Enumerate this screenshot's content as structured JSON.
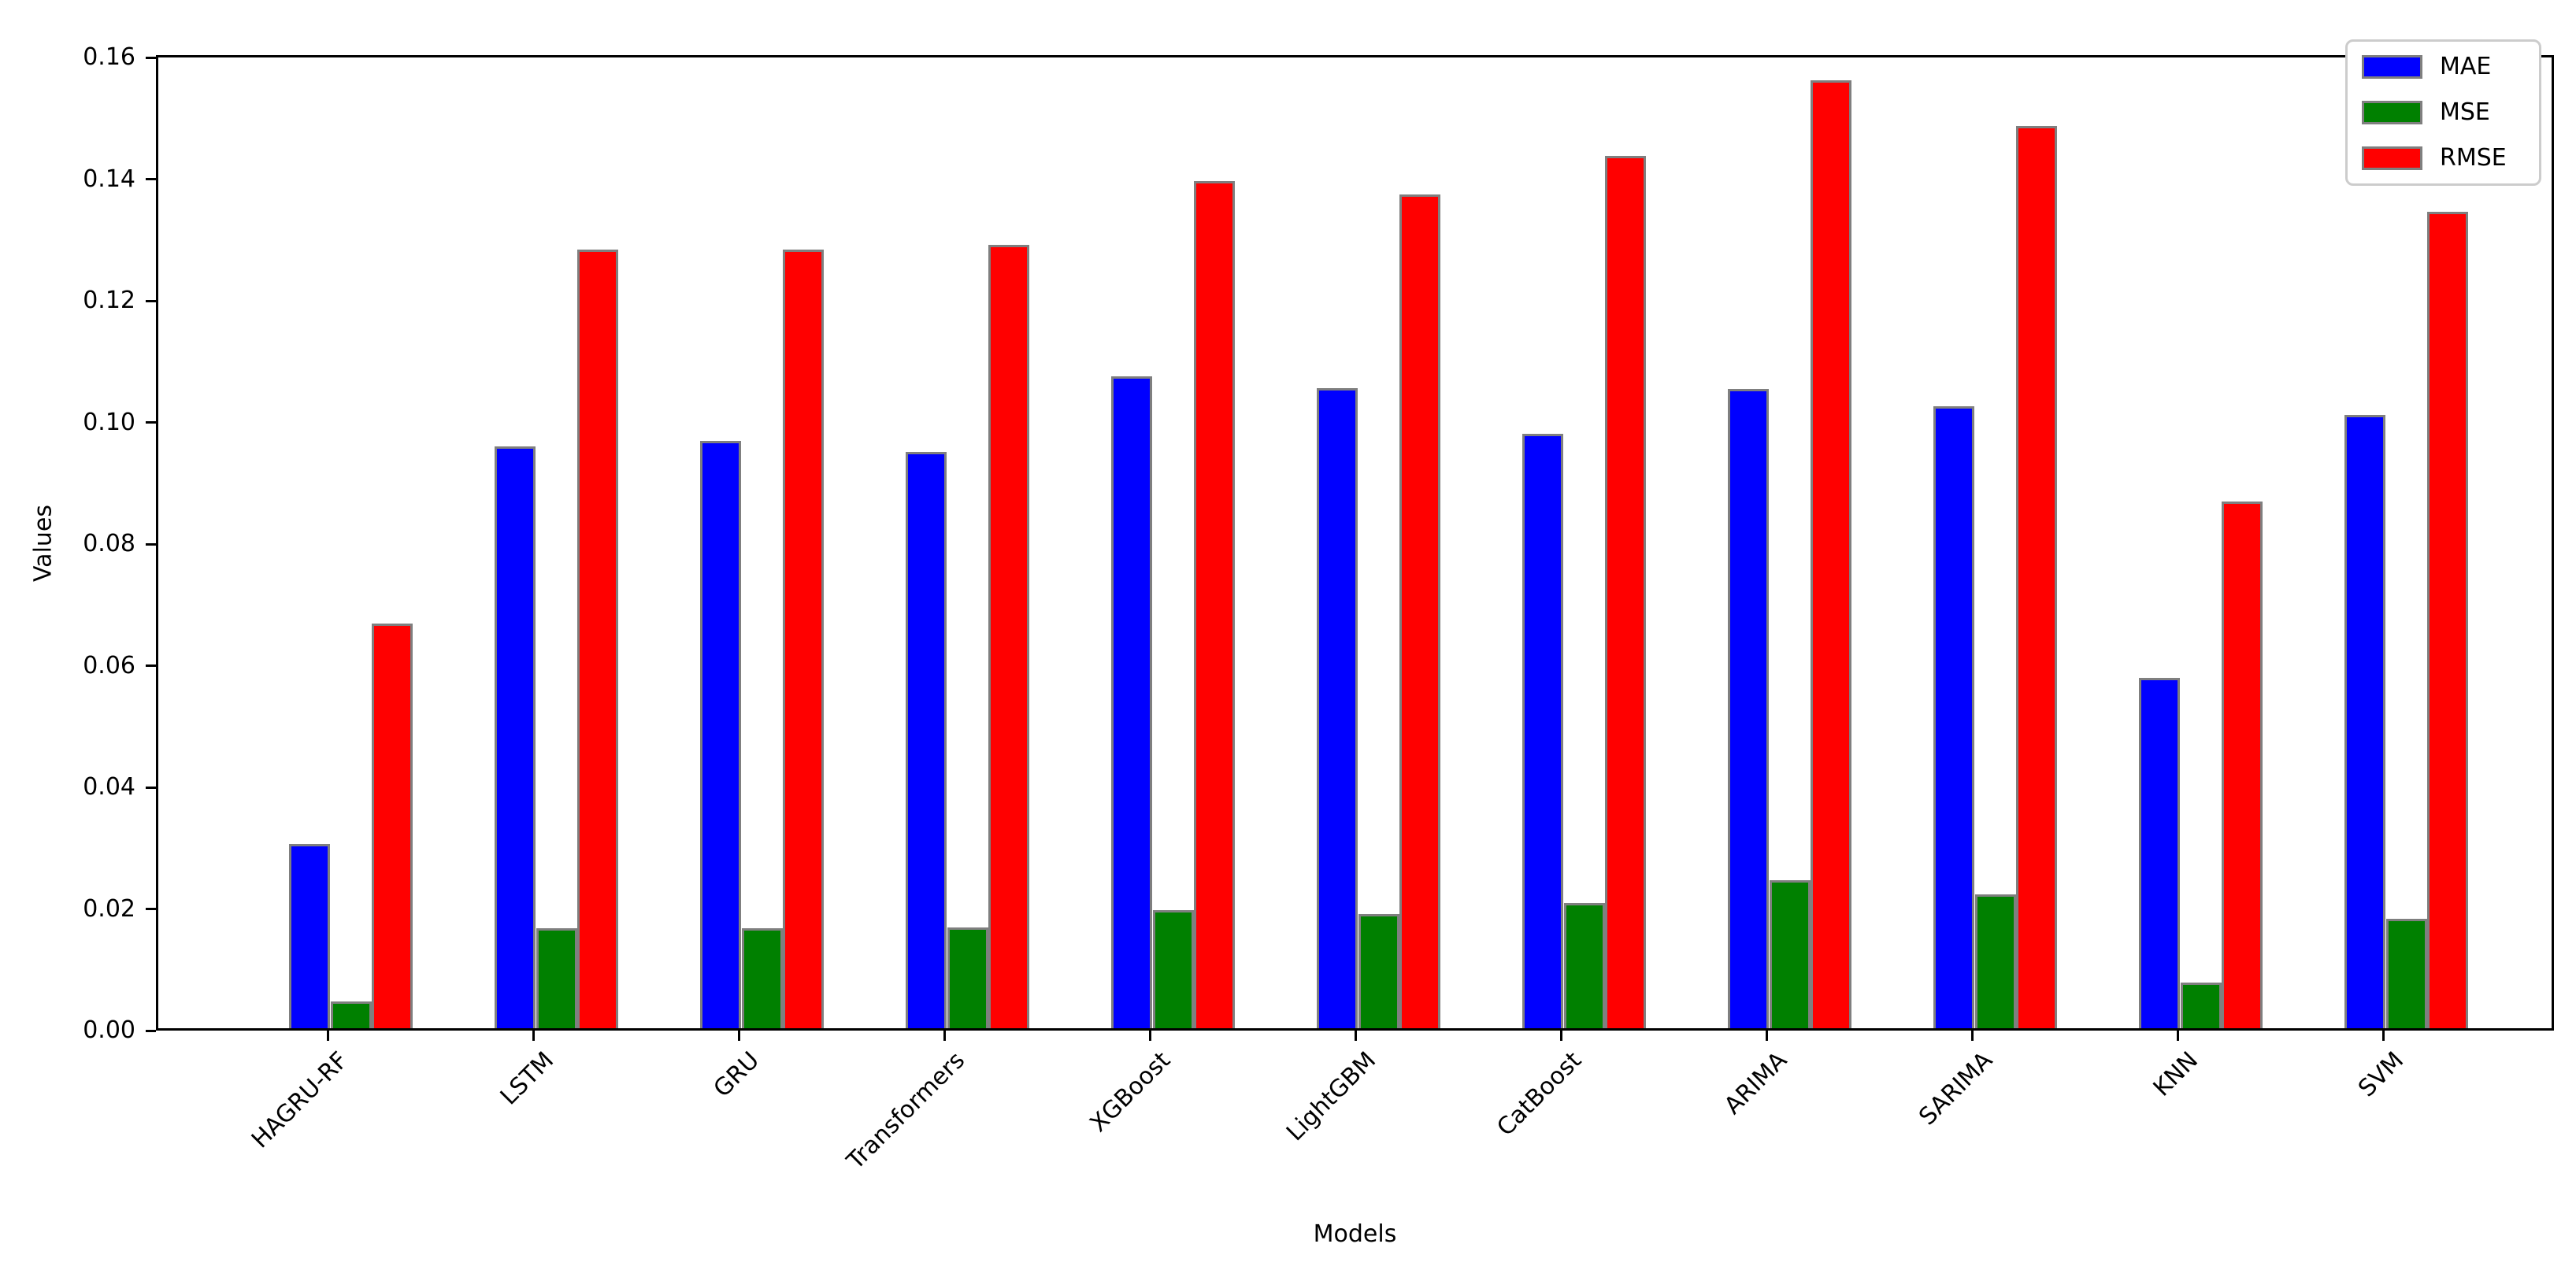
{
  "figure": {
    "xlabel": "Models",
    "ylabel": "Values"
  },
  "legend": {
    "position": "upper right",
    "items": [
      {
        "label": "MAE",
        "color": "#0000ff"
      },
      {
        "label": "MSE",
        "color": "#008000"
      },
      {
        "label": "RMSE",
        "color": "#ff0000"
      }
    ]
  },
  "chart_data": {
    "type": "bar",
    "title": "",
    "xlabel": "Models",
    "ylabel": "Values",
    "categories": [
      "HAGRU-RF",
      "LSTM",
      "GRU",
      "Transformers",
      "XGBoost",
      "LightGBM",
      "CatBoost",
      "ARIMA",
      "SARIMA",
      "KNN",
      "SVM"
    ],
    "series": [
      {
        "name": "MAE",
        "color": "#0000ff",
        "values": [
          0.0303,
          0.0957,
          0.0966,
          0.0948,
          0.1072,
          0.1053,
          0.0977,
          0.1051,
          0.1023,
          0.0576,
          0.1008
        ]
      },
      {
        "name": "MSE",
        "color": "#008000",
        "values": [
          0.0044,
          0.0164,
          0.0164,
          0.0166,
          0.0194,
          0.0188,
          0.0206,
          0.0243,
          0.022,
          0.0075,
          0.018
        ]
      },
      {
        "name": "RMSE",
        "color": "#ff0000",
        "values": [
          0.0665,
          0.1281,
          0.1281,
          0.1288,
          0.1393,
          0.1371,
          0.1435,
          0.1559,
          0.1483,
          0.0866,
          0.1342
        ]
      }
    ],
    "ylim": [
      0,
      0.1604
    ],
    "yticks": [
      "0.00",
      "0.02",
      "0.04",
      "0.06",
      "0.08",
      "0.10",
      "0.12",
      "0.14",
      "0.16"
    ],
    "grid": false,
    "legend_position": "upper right",
    "bar_edge_color": "#7f7f7f",
    "background": "#ffffff"
  }
}
